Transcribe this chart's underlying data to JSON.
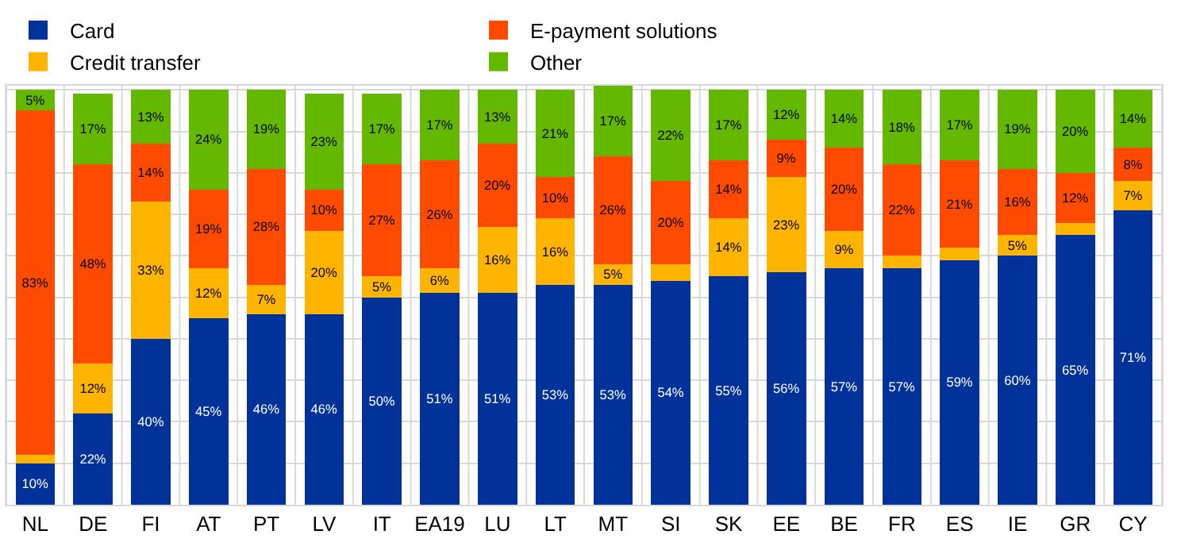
{
  "chart_data": {
    "type": "bar",
    "stacked": true,
    "categories": [
      "NL",
      "DE",
      "FI",
      "AT",
      "PT",
      "LV",
      "IT",
      "EA19",
      "LU",
      "LT",
      "MT",
      "SI",
      "SK",
      "EE",
      "BE",
      "FR",
      "ES",
      "IE",
      "GR",
      "CY"
    ],
    "series": [
      {
        "name": "Card",
        "color": "#003299",
        "values": [
          10,
          22,
          40,
          45,
          46,
          46,
          50,
          51,
          51,
          53,
          53,
          54,
          55,
          56,
          57,
          57,
          59,
          60,
          65,
          71
        ],
        "value_labels": [
          "10%",
          "22%",
          "40%",
          "45%",
          "46%",
          "46%",
          "50%",
          "51%",
          "51%",
          "53%",
          "53%",
          "54%",
          "55%",
          "56%",
          "57%",
          "57%",
          "59%",
          "60%",
          "65%",
          "71%"
        ]
      },
      {
        "name": "Credit transfer",
        "color": "#ffb400",
        "values": [
          2,
          12,
          33,
          12,
          7,
          20,
          5,
          6,
          16,
          16,
          5,
          4,
          14,
          23,
          9,
          3,
          3,
          5,
          3,
          7
        ],
        "value_labels": [
          null,
          "12%",
          "33%",
          "12%",
          "7%",
          "20%",
          "5%",
          "6%",
          "16%",
          "16%",
          "5%",
          null,
          "14%",
          "23%",
          "9%",
          null,
          null,
          "5%",
          null,
          "7%"
        ]
      },
      {
        "name": "E-payment solutions",
        "color": "#ff4b00",
        "values": [
          83,
          48,
          14,
          19,
          28,
          10,
          27,
          26,
          20,
          10,
          26,
          20,
          14,
          9,
          20,
          22,
          21,
          16,
          12,
          8
        ],
        "value_labels": [
          "83%",
          "48%",
          "14%",
          "19%",
          "28%",
          "10%",
          "27%",
          "26%",
          "20%",
          "10%",
          "26%",
          "20%",
          "14%",
          "9%",
          "20%",
          "22%",
          "21%",
          "16%",
          "12%",
          "8%"
        ]
      },
      {
        "name": "Other",
        "color": "#65b800",
        "values": [
          5,
          17,
          13,
          24,
          19,
          23,
          17,
          17,
          13,
          21,
          17,
          22,
          17,
          12,
          14,
          18,
          17,
          19,
          20,
          14
        ],
        "value_labels": [
          "5%",
          "17%",
          "13%",
          "24%",
          "19%",
          "23%",
          "17%",
          "17%",
          "13%",
          "21%",
          "17%",
          "22%",
          "17%",
          "12%",
          "14%",
          "18%",
          "17%",
          "19%",
          "20%",
          "14%"
        ]
      }
    ],
    "ylim": [
      0,
      101
    ],
    "yticks": [
      {
        "value": 0,
        "label": null
      },
      {
        "value": 10,
        "label": null
      },
      {
        "value": 20,
        "label": null
      },
      {
        "value": 30,
        "label": null
      },
      {
        "value": 40,
        "label": null
      },
      {
        "value": 50,
        "label": null
      },
      {
        "value": 60,
        "label": null
      },
      {
        "value": 70,
        "label": null
      },
      {
        "value": 80,
        "label": null
      },
      {
        "value": 90,
        "label": null
      },
      {
        "value": 100,
        "label": null
      }
    ],
    "tick_labels": "x",
    "grid": true,
    "legend": "top left"
  }
}
